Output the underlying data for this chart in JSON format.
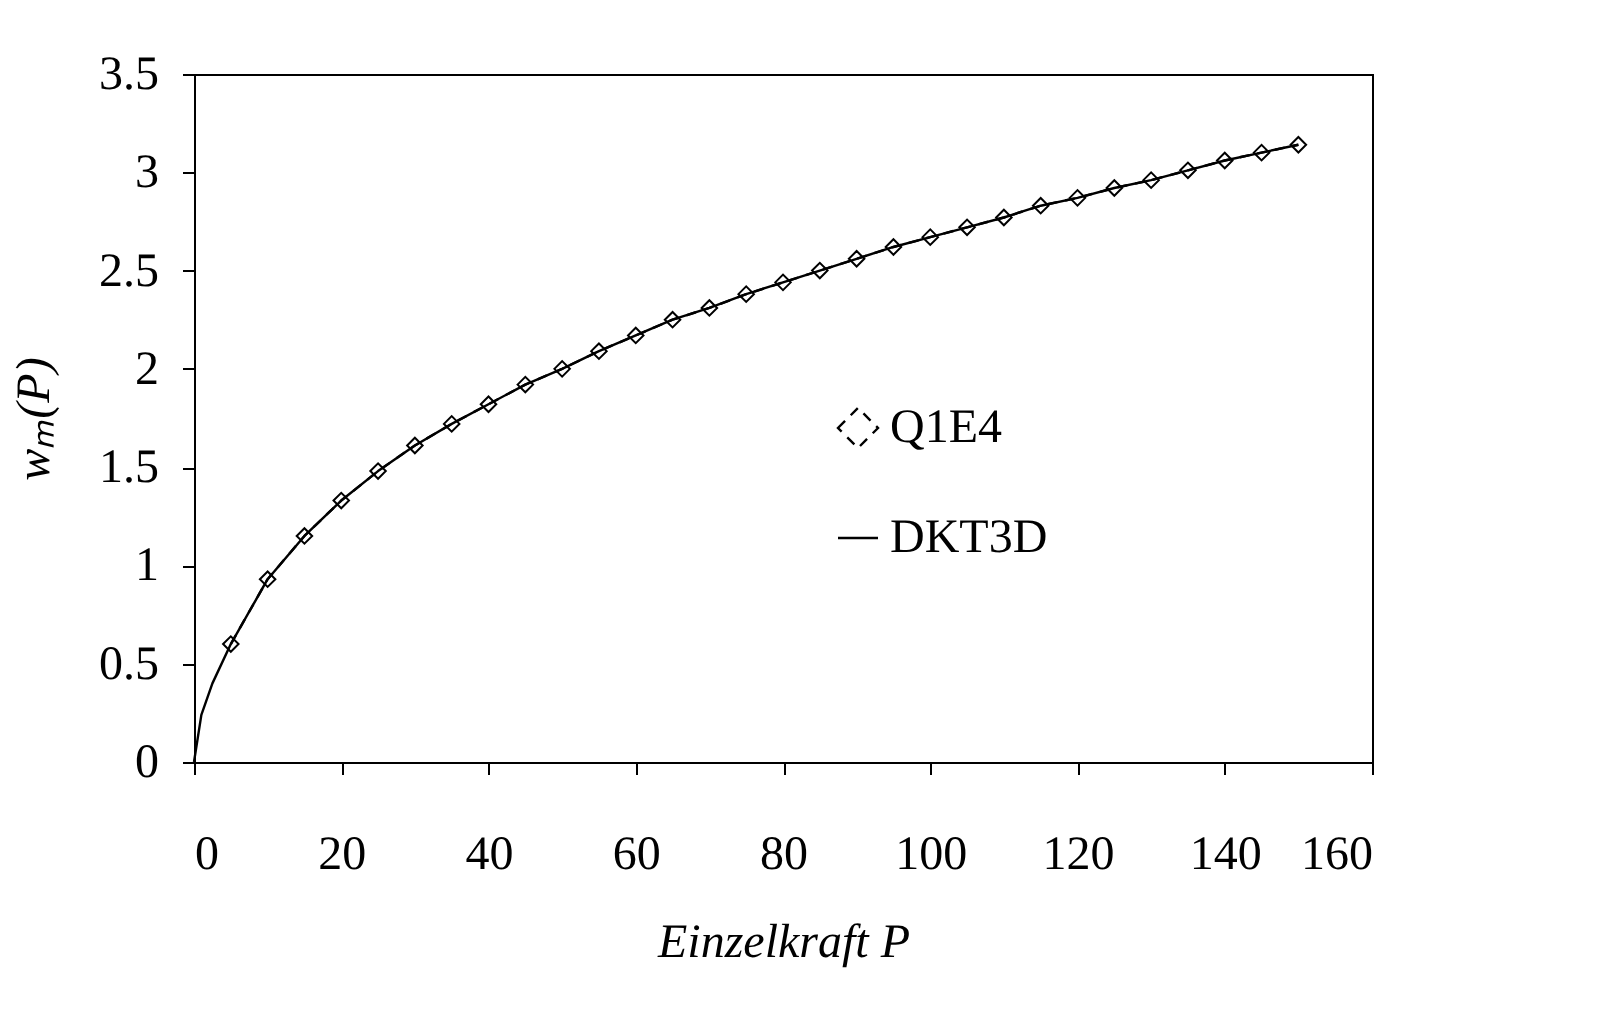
{
  "chart_data": {
    "type": "line",
    "xlabel": "Einzelkraft P",
    "ylabel": "wₘ(P)",
    "xlim": [
      0,
      160
    ],
    "xticks": [
      0,
      20,
      40,
      60,
      80,
      100,
      120,
      140,
      160
    ],
    "ylim": [
      0,
      3.5
    ],
    "yticks": [
      0,
      0.5,
      1,
      1.5,
      2,
      2.5,
      3,
      3.5
    ],
    "grid": false,
    "legend": "right",
    "series": [
      {
        "name": "Q1E4",
        "color": "#000000",
        "marker": "diamond",
        "line_style": "dashed",
        "x": [
          5,
          10,
          15,
          20,
          25,
          30,
          35,
          40,
          45,
          50,
          55,
          60,
          65,
          70,
          75,
          80,
          85,
          90,
          95,
          100,
          105,
          110,
          115,
          120,
          125,
          130,
          135,
          140,
          145,
          150
        ],
        "values": [
          0.6,
          0.93,
          1.15,
          1.33,
          1.48,
          1.61,
          1.72,
          1.82,
          1.92,
          2.0,
          2.09,
          2.17,
          2.25,
          2.31,
          2.38,
          2.44,
          2.5,
          2.56,
          2.62,
          2.67,
          2.72,
          2.77,
          2.83,
          2.87,
          2.92,
          2.96,
          3.01,
          3.06,
          3.1,
          3.14
        ]
      },
      {
        "name": "DKT3D",
        "color": "#000000",
        "marker": "none",
        "line_style": "solid",
        "x": [
          0,
          1,
          2.5,
          5,
          10,
          15,
          20,
          25,
          30,
          35,
          40,
          45,
          50,
          55,
          60,
          65,
          70,
          75,
          80,
          85,
          90,
          95,
          100,
          105,
          110,
          115,
          120,
          125,
          130,
          135,
          140,
          145,
          150
        ],
        "values": [
          0,
          0.24,
          0.4,
          0.6,
          0.93,
          1.15,
          1.33,
          1.48,
          1.61,
          1.72,
          1.82,
          1.92,
          2.0,
          2.09,
          2.17,
          2.25,
          2.31,
          2.38,
          2.44,
          2.5,
          2.56,
          2.62,
          2.67,
          2.72,
          2.77,
          2.83,
          2.87,
          2.92,
          2.96,
          3.01,
          3.06,
          3.1,
          3.14
        ]
      }
    ]
  }
}
